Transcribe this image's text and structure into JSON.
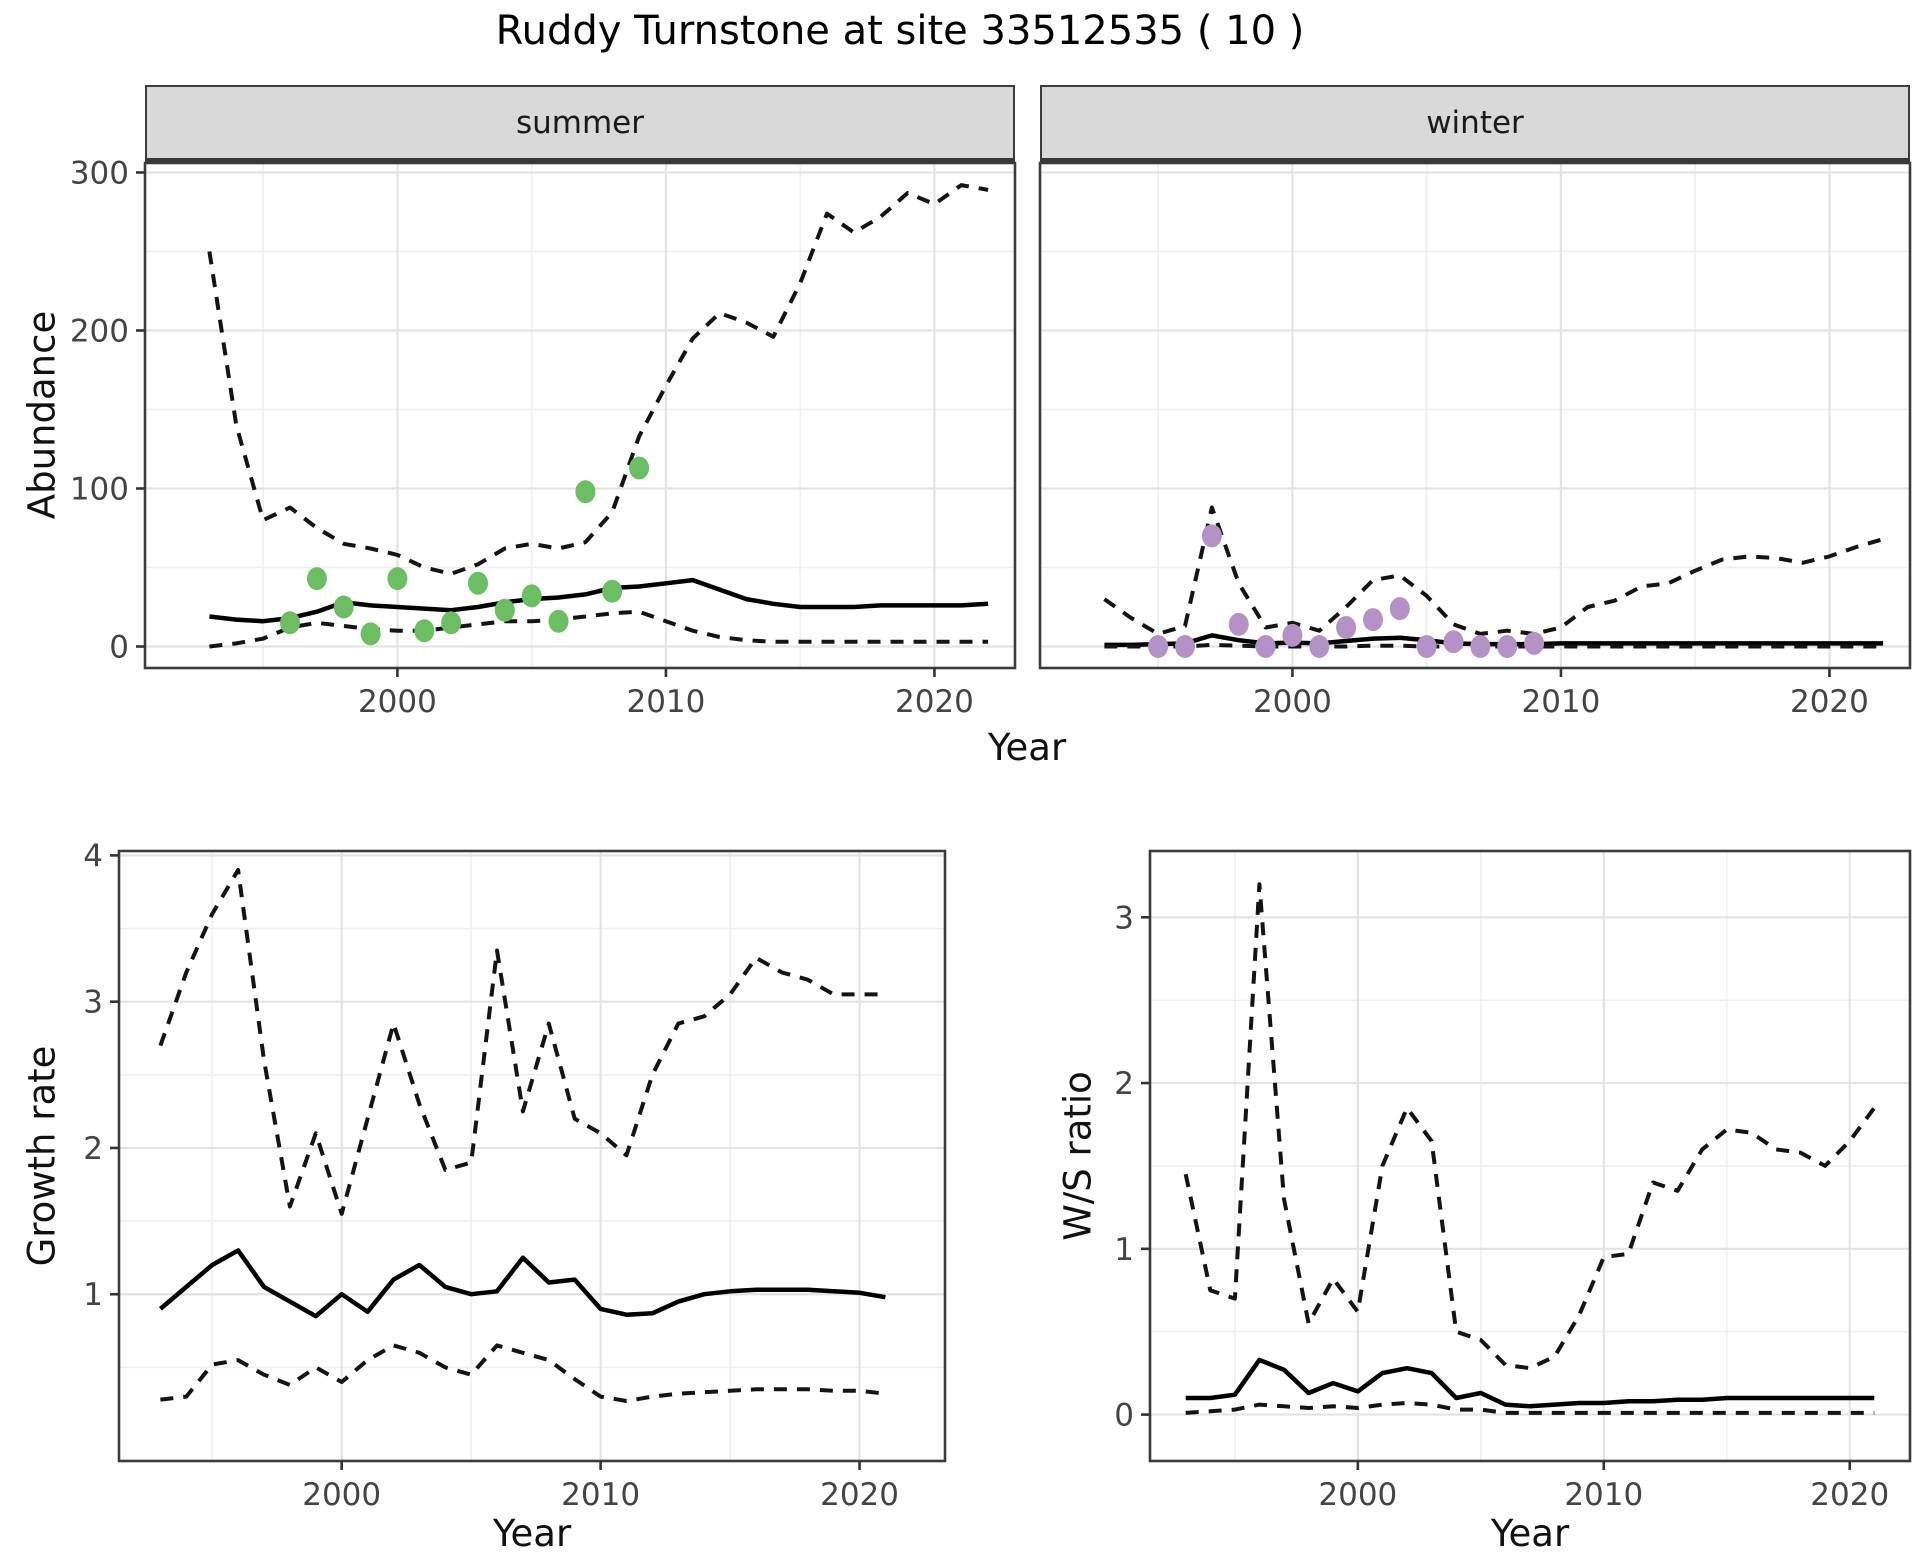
{
  "title": "Ruddy Turnstone at site 33512535 ( 10 )",
  "colors": {
    "summer_points": "#6cbe63",
    "winter_points": "#b592c6",
    "median_line": "#000000",
    "ci_line": "#141414",
    "strip_bg": "#d9d9d9",
    "panel_border": "#3c3c3c",
    "grid_major": "#e3e3e3",
    "grid_minor": "#f0f0f0",
    "tick_text": "#444444"
  },
  "labels": {
    "facet_summer": "summer",
    "facet_winter": "winter",
    "abundance_ylabel": "Abundance",
    "growth_ylabel": "Growth rate",
    "ws_ylabel": "W/S ratio",
    "top_xlabel": "Year",
    "growth_xlabel": "Year",
    "ws_xlabel": "Year"
  },
  "chart_data": [
    {
      "id": "abundance_summer",
      "type": "line",
      "facet_label": "summer",
      "title": "Abundance - summer facet",
      "xlabel": "Year",
      "ylabel": "Abundance",
      "xlim": [
        1990.6,
        2023.0
      ],
      "ylim": [
        -13.6,
        306
      ],
      "xticks": [
        2000,
        2010,
        2020
      ],
      "xminor": [
        1995,
        2005,
        2015
      ],
      "yticks": [
        0,
        100,
        200,
        300
      ],
      "yminor": [
        50,
        150,
        250
      ],
      "show_yticklabels": true,
      "x_years": [
        1993,
        1994,
        1995,
        1996,
        1997,
        1998,
        1999,
        2000,
        2001,
        2002,
        2003,
        2004,
        2005,
        2006,
        2007,
        2008,
        2009,
        2010,
        2011,
        2012,
        2013,
        2014,
        2015,
        2016,
        2017,
        2018,
        2019,
        2020,
        2021,
        2022
      ],
      "series": [
        {
          "name": "upper_95ci",
          "style": "dashed",
          "values": [
            250,
            140,
            80,
            88,
            75,
            65,
            62,
            58,
            50,
            46,
            52,
            62,
            65,
            62,
            66,
            85,
            133,
            165,
            195,
            211,
            205,
            196,
            230,
            274,
            262,
            272,
            287,
            280,
            292,
            289
          ]
        },
        {
          "name": "median",
          "style": "solid",
          "values": [
            19,
            17,
            16,
            18,
            22,
            28,
            26,
            25,
            24,
            23,
            25,
            28,
            30,
            31,
            33,
            37,
            38,
            40,
            42,
            36,
            30,
            27,
            25,
            25,
            25,
            26,
            26,
            26,
            26,
            27
          ]
        },
        {
          "name": "lower_95ci",
          "style": "dashed",
          "values": [
            0,
            2,
            5,
            12,
            15,
            13,
            11,
            10,
            10,
            12,
            14,
            16,
            16,
            17,
            19,
            21,
            22,
            16,
            10,
            6,
            4,
            3,
            3,
            3,
            3,
            3,
            3,
            3,
            3,
            3
          ]
        }
      ],
      "points": {
        "name": "observed_summer_counts",
        "color_key": "summer_points",
        "years": [
          1996,
          1997,
          1998,
          1999,
          2000,
          2001,
          2002,
          2003,
          2004,
          2005,
          2006,
          2007,
          2008,
          2009
        ],
        "values": [
          15,
          43,
          25,
          8,
          43,
          10,
          15,
          40,
          23,
          32,
          16,
          98,
          35,
          113
        ]
      }
    },
    {
      "id": "abundance_winter",
      "type": "line",
      "facet_label": "winter",
      "title": "Abundance - winter facet",
      "xlabel": "Year",
      "ylabel": "Abundance",
      "xlim": [
        1990.6,
        2023.0
      ],
      "ylim": [
        -13.6,
        306
      ],
      "xticks": [
        2000,
        2010,
        2020
      ],
      "xminor": [
        1995,
        2005,
        2015
      ],
      "yticks": [
        0,
        100,
        200,
        300
      ],
      "yminor": [
        50,
        150,
        250
      ],
      "show_yticklabels": false,
      "x_years": [
        1993,
        1994,
        1995,
        1996,
        1997,
        1998,
        1999,
        2000,
        2001,
        2002,
        2003,
        2004,
        2005,
        2006,
        2007,
        2008,
        2009,
        2010,
        2011,
        2012,
        2013,
        2014,
        2015,
        2016,
        2017,
        2018,
        2019,
        2020,
        2021,
        2022
      ],
      "series": [
        {
          "name": "upper_95ci",
          "style": "dashed",
          "values": [
            30,
            18,
            8,
            13,
            88,
            40,
            12,
            15,
            10,
            25,
            42,
            45,
            32,
            14,
            8,
            10,
            8,
            12,
            25,
            29,
            38,
            40,
            48,
            55,
            57,
            56,
            53,
            57,
            63,
            68
          ]
        },
        {
          "name": "median",
          "style": "solid",
          "values": [
            1,
            1,
            1.5,
            2,
            7,
            4,
            2,
            2.5,
            2,
            3.5,
            5,
            5.5,
            4,
            2,
            1.5,
            1.5,
            1.5,
            2,
            2,
            2,
            2,
            2,
            2,
            2,
            2,
            2,
            2,
            2,
            2,
            2
          ]
        },
        {
          "name": "lower_95ci",
          "style": "dashed",
          "values": [
            0,
            0,
            0,
            0,
            1,
            0.5,
            0,
            0,
            0,
            0,
            0.5,
            0.5,
            0,
            0,
            0,
            0,
            0,
            0,
            0,
            0,
            0,
            0,
            0,
            0,
            0,
            0,
            0,
            0,
            0,
            0
          ]
        }
      ],
      "points": {
        "name": "observed_winter_counts",
        "color_key": "winter_points",
        "years": [
          1995,
          1996,
          1997,
          1998,
          1999,
          2000,
          2001,
          2002,
          2003,
          2004,
          2005,
          2006,
          2007,
          2008,
          2009
        ],
        "values": [
          0,
          0,
          70,
          14,
          0,
          7,
          0,
          12,
          17,
          24,
          0,
          3,
          0,
          0,
          2
        ]
      }
    },
    {
      "id": "growth_rate",
      "type": "line",
      "facet_label": null,
      "title": "Growth rate",
      "xlabel": "Year",
      "ylabel": "Growth rate",
      "xlim": [
        1991.4,
        2023.3
      ],
      "ylim": [
        -0.14,
        4.03
      ],
      "xticks": [
        2000,
        2010,
        2020
      ],
      "xminor": [
        1995,
        2005,
        2015
      ],
      "yticks": [
        1,
        2,
        3,
        4
      ],
      "yminor": [
        0.5,
        1.5,
        2.5,
        3.5
      ],
      "show_yticklabels": true,
      "x_years": [
        1993,
        1994,
        1995,
        1996,
        1997,
        1998,
        1999,
        2000,
        2001,
        2002,
        2003,
        2004,
        2005,
        2006,
        2007,
        2008,
        2009,
        2010,
        2011,
        2012,
        2013,
        2014,
        2015,
        2016,
        2017,
        2018,
        2019,
        2020,
        2021
      ],
      "series": [
        {
          "name": "upper_95ci",
          "style": "dashed",
          "values": [
            2.7,
            3.2,
            3.6,
            3.9,
            2.6,
            1.6,
            2.1,
            1.55,
            2.2,
            2.85,
            2.3,
            1.85,
            1.9,
            3.35,
            2.25,
            2.85,
            2.2,
            2.1,
            1.95,
            2.5,
            2.85,
            2.9,
            3.05,
            3.3,
            3.2,
            3.15,
            3.05,
            3.05,
            3.05
          ]
        },
        {
          "name": "median",
          "style": "solid",
          "values": [
            0.9,
            1.05,
            1.2,
            1.3,
            1.05,
            0.95,
            0.85,
            1.0,
            0.88,
            1.1,
            1.2,
            1.05,
            1.0,
            1.02,
            1.25,
            1.08,
            1.1,
            0.9,
            0.86,
            0.87,
            0.95,
            1.0,
            1.02,
            1.03,
            1.03,
            1.03,
            1.02,
            1.01,
            0.98
          ]
        },
        {
          "name": "lower_95ci",
          "style": "dashed",
          "values": [
            0.28,
            0.3,
            0.52,
            0.55,
            0.45,
            0.38,
            0.5,
            0.4,
            0.55,
            0.65,
            0.6,
            0.5,
            0.45,
            0.65,
            0.6,
            0.55,
            0.42,
            0.3,
            0.27,
            0.3,
            0.32,
            0.33,
            0.34,
            0.35,
            0.35,
            0.35,
            0.34,
            0.34,
            0.32
          ]
        }
      ],
      "points": null
    },
    {
      "id": "ws_ratio",
      "type": "line",
      "facet_label": null,
      "title": "W/S ratio",
      "xlabel": "Year",
      "ylabel": "W/S ratio",
      "xlim": [
        1991.55,
        2022.45
      ],
      "ylim": [
        -0.28,
        3.4
      ],
      "xticks": [
        2000,
        2010,
        2020
      ],
      "xminor": [
        1995,
        2005,
        2015
      ],
      "yticks": [
        0,
        1,
        2,
        3
      ],
      "yminor": [
        0.5,
        1.5,
        2.5
      ],
      "show_yticklabels": true,
      "x_years": [
        1993,
        1994,
        1995,
        1996,
        1997,
        1998,
        1999,
        2000,
        2001,
        2002,
        2003,
        2004,
        2005,
        2006,
        2007,
        2008,
        2009,
        2010,
        2011,
        2012,
        2013,
        2014,
        2015,
        2016,
        2017,
        2018,
        2019,
        2020,
        2021
      ],
      "series": [
        {
          "name": "upper_95ci",
          "style": "dashed",
          "values": [
            1.45,
            0.75,
            0.7,
            3.2,
            1.3,
            0.55,
            0.82,
            0.62,
            1.5,
            1.85,
            1.65,
            0.5,
            0.45,
            0.3,
            0.28,
            0.35,
            0.6,
            0.95,
            0.97,
            1.4,
            1.35,
            1.6,
            1.72,
            1.7,
            1.6,
            1.58,
            1.5,
            1.65,
            1.85
          ]
        },
        {
          "name": "median",
          "style": "solid",
          "values": [
            0.1,
            0.1,
            0.12,
            0.33,
            0.27,
            0.13,
            0.19,
            0.14,
            0.25,
            0.28,
            0.25,
            0.1,
            0.13,
            0.06,
            0.05,
            0.06,
            0.07,
            0.07,
            0.08,
            0.08,
            0.09,
            0.09,
            0.1,
            0.1,
            0.1,
            0.1,
            0.1,
            0.1,
            0.1
          ]
        },
        {
          "name": "lower_95ci",
          "style": "dashed",
          "values": [
            0.01,
            0.02,
            0.03,
            0.06,
            0.05,
            0.04,
            0.05,
            0.04,
            0.06,
            0.07,
            0.06,
            0.03,
            0.03,
            0.01,
            0.01,
            0.01,
            0.01,
            0.01,
            0.01,
            0.01,
            0.01,
            0.01,
            0.01,
            0.01,
            0.01,
            0.01,
            0.01,
            0.01,
            0.01
          ]
        }
      ],
      "points": null
    }
  ]
}
